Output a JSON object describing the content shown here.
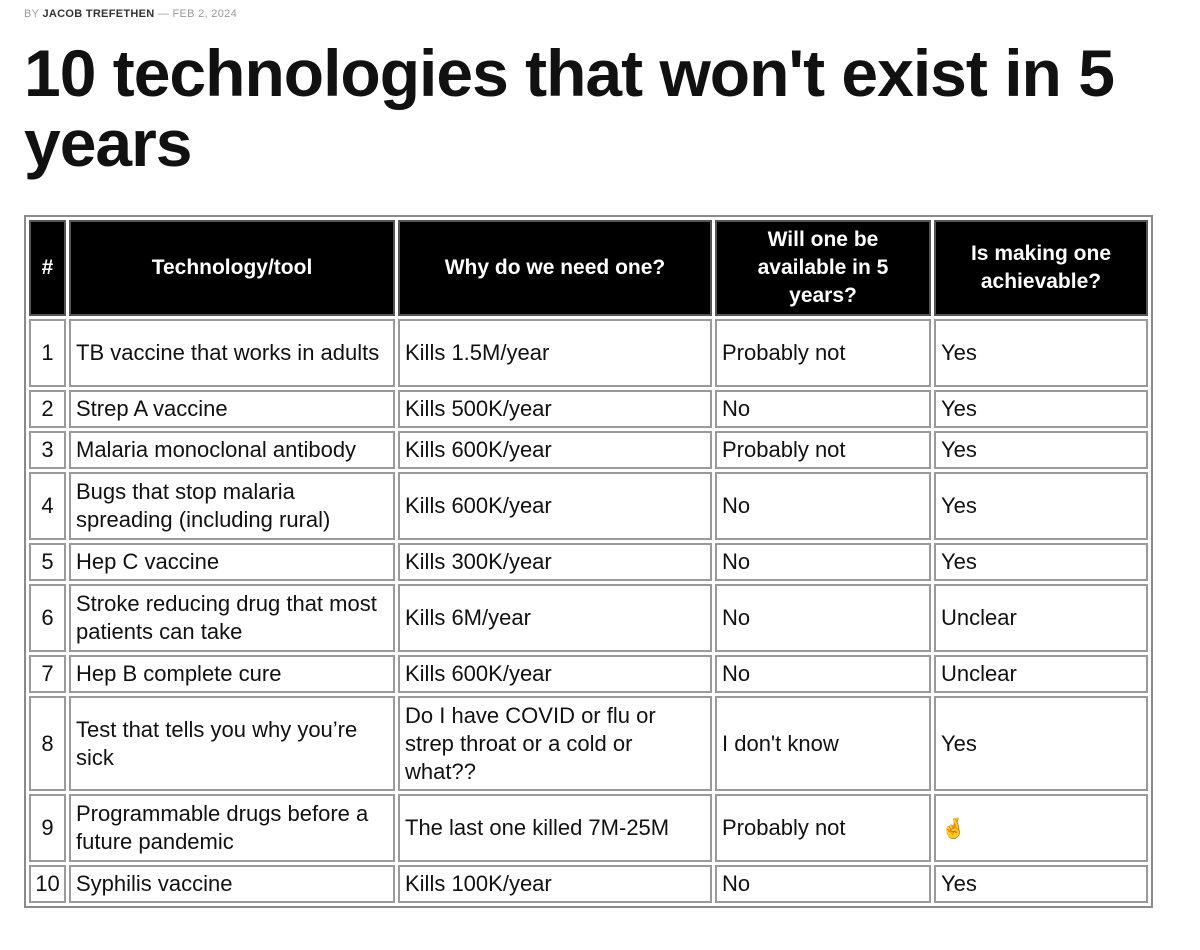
{
  "byline": {
    "prefix": "BY",
    "author": "JACOB TREFETHEN",
    "separator": "—",
    "date": "FEB 2, 2024"
  },
  "title": "10 technologies that won't exist in 5 years",
  "table": {
    "headers": [
      "#",
      "Technology/tool",
      "Why do we need one?",
      "Will one be available in 5 years?",
      "Is making one achievable?"
    ],
    "rows": [
      {
        "num": "1",
        "tech": "TB vaccine that works in adults",
        "why": "Kills 1.5M/year",
        "available": "Probably not",
        "achievable": "Yes"
      },
      {
        "num": "2",
        "tech": "Strep A vaccine",
        "why": "Kills 500K/year",
        "available": "No",
        "achievable": "Yes"
      },
      {
        "num": "3",
        "tech": "Malaria monoclonal antibody",
        "why": "Kills 600K/year",
        "available": "Probably not",
        "achievable": "Yes"
      },
      {
        "num": "4",
        "tech": "Bugs that stop malaria spreading (including rural)",
        "why": "Kills 600K/year",
        "available": "No",
        "achievable": "Yes"
      },
      {
        "num": "5",
        "tech": "Hep C vaccine",
        "why": "Kills 300K/year",
        "available": "No",
        "achievable": "Yes"
      },
      {
        "num": "6",
        "tech": "Stroke reducing drug that most patients can take",
        "why": "Kills 6M/year",
        "available": "No",
        "achievable": "Unclear"
      },
      {
        "num": "7",
        "tech": "Hep B complete cure",
        "why": "Kills 600K/year",
        "available": "No",
        "achievable": "Unclear"
      },
      {
        "num": "8",
        "tech": "Test that tells you why you’re sick",
        "why": "Do I have COVID or flu or strep throat or a cold or what??",
        "available": "I don't know",
        "achievable": "Yes"
      },
      {
        "num": "9",
        "tech": "Programmable drugs before a future pandemic",
        "why": "The last one killed 7M-25M",
        "available": "Probably not",
        "achievable": "🤞",
        "achievable_icon": "crossed-fingers-icon"
      },
      {
        "num": "10",
        "tech": "Syphilis vaccine",
        "why": "Kills 100K/year",
        "available": "No",
        "achievable": "Yes"
      }
    ]
  }
}
